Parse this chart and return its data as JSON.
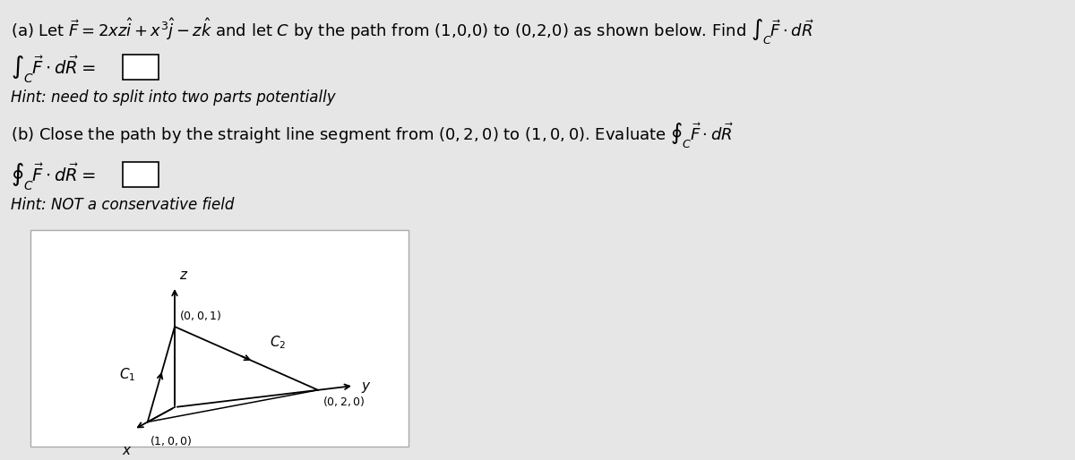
{
  "bg_color": "#e6e6e6",
  "title_a": "(a) Let $\\vec{F} = 2xz\\hat{i} + x^3\\hat{j} - z\\hat{k}$ and let $C$ by the path from (1,0,0) to (0,2,0) as shown below. Find $\\int_C \\vec{F} \\cdot d\\vec{R}$",
  "integral_a": "$\\int_C \\vec{F} \\cdot d\\vec{R} =$",
  "hint_a": "Hint: need to split into two parts potentially",
  "title_b": "(b) Close the path by the straight line segment from $(0, 2, 0)$ to $(1, 0, 0)$. Evaluate $\\oint_C \\vec{F} \\cdot d\\vec{R}$",
  "integral_b": "$\\oint_C \\vec{F} \\cdot d\\vec{R} =$",
  "hint_b": "Hint: NOT a conservative field",
  "font_size_main": 13,
  "font_size_hint": 12,
  "line_color": "#000000"
}
